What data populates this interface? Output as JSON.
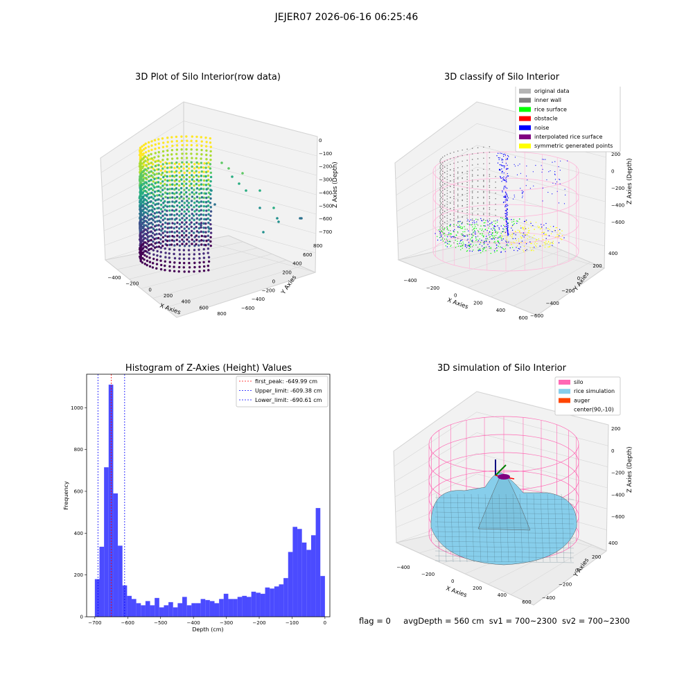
{
  "figure": {
    "suptitle": "JEJER07 2026-06-16 06:25:46"
  },
  "panel_raw": {
    "title": "3D Plot of Silo Interior(row data)",
    "xlabel": "X Axies",
    "ylabel": "Y Axies",
    "zlabel": "Z Axies (Depth)",
    "xticks": [
      "−400",
      "−200",
      "0",
      "200",
      "400",
      "600",
      "800"
    ],
    "yticks": [
      "800",
      "600",
      "400",
      "200",
      "0",
      "−200",
      "−400",
      "−600"
    ],
    "zticks": [
      "0",
      "−100",
      "−200",
      "−300",
      "−400",
      "−500",
      "−600",
      "−700"
    ]
  },
  "panel_classify": {
    "title": "3D classify of Silo Interior",
    "xlabel": "X Axies",
    "ylabel": "Y Axies",
    "zlabel": "Z Axies (Depth)",
    "xticks": [
      "−400",
      "−200",
      "0",
      "200",
      "400",
      "600"
    ],
    "yticks": [
      "400",
      "200",
      "0",
      "−200",
      "−400",
      "−600"
    ],
    "zticks": [
      "200",
      "0",
      "−200",
      "−400",
      "−600"
    ],
    "legend": [
      {
        "label": "original data",
        "color": "#b4b4b4"
      },
      {
        "label": "inner wall",
        "color": "#808080"
      },
      {
        "label": "rice surface",
        "color": "#00ff00"
      },
      {
        "label": "obstacle",
        "color": "#ff0000"
      },
      {
        "label": "noise",
        "color": "#0000ff"
      },
      {
        "label": "interpolated rice surface",
        "color": "#800080"
      },
      {
        "label": "symmetric generated points",
        "color": "#ffff00"
      }
    ]
  },
  "panel_sim": {
    "title": "3D simulation of Silo Interior",
    "xlabel": "X Axies",
    "ylabel": "Y Axies",
    "zlabel": "Z Axies (Depth)",
    "xticks": [
      "−400",
      "−200",
      "0",
      "200",
      "400",
      "600"
    ],
    "yticks": [
      "400",
      "200",
      "0",
      "−200",
      "−400"
    ],
    "zticks": [
      "200",
      "0",
      "−200",
      "−400",
      "−600"
    ],
    "legend": [
      {
        "label": "silo",
        "color": "#ff69b4"
      },
      {
        "label": "rice simulation",
        "color": "#87ceeb"
      },
      {
        "label": "auger",
        "color": "#ff4500"
      },
      {
        "label": "center(90,-10)",
        "color": "#ffffff"
      }
    ]
  },
  "status": {
    "flag": "flag = 0",
    "avg_depth": "avgDepth = 560 cm",
    "sv1": "sv1 = 700~2300",
    "sv2": "sv2 = 700~2300"
  },
  "chart_data": [
    {
      "type": "bar",
      "title": "Histogram of Z-Axies (Height) Values",
      "xlabel": "Depth (cm)",
      "ylabel": "Frequency",
      "bar_color": "#4b4bff",
      "bins": {
        "start": -700,
        "width": 14
      },
      "values": [
        180,
        335,
        715,
        1110,
        590,
        340,
        150,
        100,
        85,
        65,
        55,
        75,
        55,
        90,
        45,
        55,
        70,
        45,
        65,
        95,
        55,
        65,
        65,
        85,
        80,
        75,
        65,
        85,
        110,
        85,
        85,
        95,
        100,
        95,
        120,
        115,
        110,
        140,
        135,
        145,
        155,
        185,
        310,
        430,
        420,
        355,
        320,
        390,
        520,
        195
      ],
      "xlim": [
        -725,
        15
      ],
      "ylim": [
        0,
        1160
      ],
      "xticks": [
        -700,
        -600,
        -500,
        -400,
        -300,
        -200,
        -100,
        0
      ],
      "xtick_labels": [
        "−700",
        "−600",
        "−500",
        "−400",
        "−300",
        "−200",
        "−100",
        "0"
      ],
      "yticks": [
        0,
        200,
        400,
        600,
        800,
        1000
      ],
      "vlines": [
        {
          "x": -649.99,
          "color": "#ff0000",
          "label": "first_peak: -649.99 cm"
        },
        {
          "x": -609.38,
          "color": "#0000ff",
          "label": "Upper_limit: -609.38 cm"
        },
        {
          "x": -690.61,
          "color": "#0000ff",
          "label": "Lower_limit: -690.61 cm"
        }
      ],
      "legend_position": "top-right"
    }
  ]
}
